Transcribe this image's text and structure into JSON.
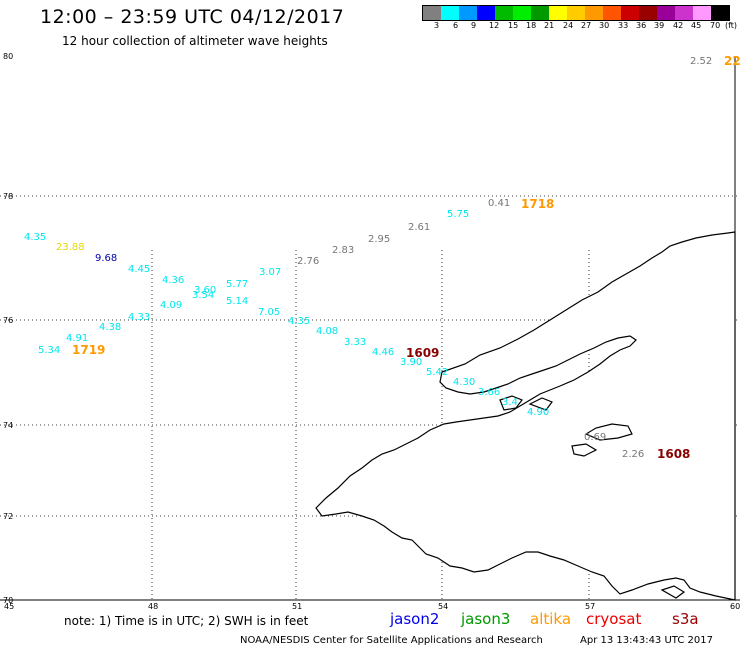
{
  "header": {
    "title": "12:00 – 23:59 UTC 04/12/2017",
    "subtitle": "12 hour collection of altimeter wave heights"
  },
  "legend": {
    "colors": [
      "#808080",
      "#00ffff",
      "#0099ff",
      "#0000ff",
      "#00bb00",
      "#00ee00",
      "#009900",
      "#ffff00",
      "#ffcc00",
      "#ff9900",
      "#ff5500",
      "#cc0000",
      "#990000",
      "#990099",
      "#cc33cc",
      "#ff99ff",
      "#000000"
    ],
    "labels": [
      "3",
      "6",
      "9",
      "12",
      "15",
      "18",
      "21",
      "24",
      "27",
      "30",
      "33",
      "36",
      "39",
      "42",
      "45",
      "70",
      "(ft)"
    ]
  },
  "axes": {
    "lat_labels": [
      "80",
      "78",
      "76",
      "74",
      "72",
      "70"
    ],
    "lon_labels": [
      "45",
      "48",
      "51",
      "54",
      "57",
      "60"
    ]
  },
  "colors": {
    "cyan": "#00e5ee",
    "gray": "#777777",
    "yellow": "#e6d800",
    "blue": "#0000aa",
    "orange": "#ff9900",
    "darkred": "#880000"
  },
  "wave_heights": [
    {
      "text": "2.52",
      "color": "gray"
    },
    {
      "text": "4.35",
      "color": "cyan"
    },
    {
      "text": "23.88",
      "color": "yellow"
    },
    {
      "text": "9.68",
      "color": "blue"
    },
    {
      "text": "4.45",
      "color": "cyan"
    },
    {
      "text": "4.36",
      "color": "cyan"
    },
    {
      "text": "3.60",
      "color": "cyan"
    },
    {
      "text": "3.54",
      "color": "cyan"
    },
    {
      "text": "5.77",
      "color": "cyan"
    },
    {
      "text": "3.07",
      "color": "cyan"
    },
    {
      "text": "4.09",
      "color": "cyan"
    },
    {
      "text": "5.14",
      "color": "cyan"
    },
    {
      "text": "4.33",
      "color": "cyan"
    },
    {
      "text": "7.05",
      "color": "cyan"
    },
    {
      "text": "4.38",
      "color": "cyan"
    },
    {
      "text": "4.91",
      "color": "cyan"
    },
    {
      "text": "5.34",
      "color": "cyan"
    },
    {
      "text": "2.76",
      "color": "gray"
    },
    {
      "text": "2.83",
      "color": "gray"
    },
    {
      "text": "2.95",
      "color": "gray"
    },
    {
      "text": "2.61",
      "color": "gray"
    },
    {
      "text": "5.75",
      "color": "cyan"
    },
    {
      "text": "0.41",
      "color": "gray"
    },
    {
      "text": "4.35",
      "color": "cyan"
    },
    {
      "text": "4.08",
      "color": "cyan"
    },
    {
      "text": "3.33",
      "color": "cyan"
    },
    {
      "text": "4.46",
      "color": "cyan"
    },
    {
      "text": "3.90",
      "color": "cyan"
    },
    {
      "text": "5.42",
      "color": "cyan"
    },
    {
      "text": "4.30",
      "color": "cyan"
    },
    {
      "text": "3.66",
      "color": "cyan"
    },
    {
      "text": "3.4",
      "color": "cyan"
    },
    {
      "text": "4.90",
      "color": "cyan"
    },
    {
      "text": "0.69",
      "color": "gray"
    },
    {
      "text": "2.26",
      "color": "gray"
    }
  ],
  "times": [
    {
      "text": "22",
      "color": "orange"
    },
    {
      "text": "1718",
      "color": "orange"
    },
    {
      "text": "1719",
      "color": "orange"
    },
    {
      "text": "1609",
      "color": "darkred"
    },
    {
      "text": "1608",
      "color": "darkred"
    }
  ],
  "footer": {
    "note": "note:  1) Time is in UTC;  2) SWH is in feet",
    "satellites": [
      {
        "name": "jason2",
        "color": "#0000ee"
      },
      {
        "name": "jason3",
        "color": "#009900"
      },
      {
        "name": "altika",
        "color": "#ff9900"
      },
      {
        "name": "cryosat",
        "color": "#ee0000"
      },
      {
        "name": "s3a",
        "color": "#990000"
      }
    ],
    "credit": "NOAA/NESDIS Center for Satellite Applications and Research",
    "timestamp": "Apr 13 13:43:43 UTC 2017"
  }
}
